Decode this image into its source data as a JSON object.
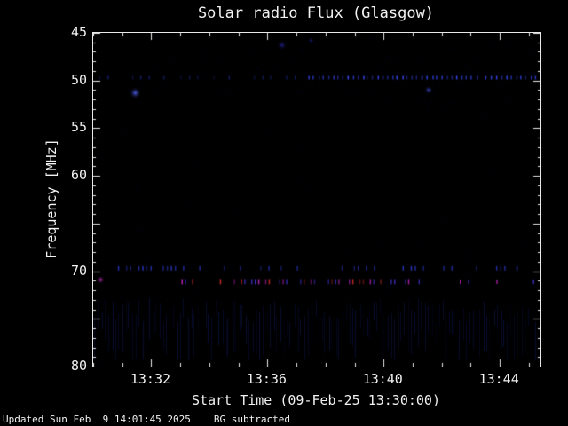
{
  "chart_data": {
    "type": "heatmap",
    "title": "Solar radio Flux (Glasgow)",
    "xlabel": "Start Time (09-Feb-25 13:30:00)",
    "ylabel": "Frequency [MHz]",
    "x_max_minutes": 15.4,
    "y_range": [
      45,
      80
    ],
    "x_ticks": [
      {
        "label": "13:32",
        "minutes": 2
      },
      {
        "label": "13:36",
        "minutes": 6
      },
      {
        "label": "13:40",
        "minutes": 10
      },
      {
        "label": "13:44",
        "minutes": 14
      }
    ],
    "y_ticks": [
      {
        "label": "45",
        "freq": 45
      },
      {
        "label": "50",
        "freq": 50
      },
      {
        "label": "55",
        "freq": 55
      },
      {
        "label": "60",
        "freq": 60
      },
      {
        "label": "70",
        "freq": 70
      },
      {
        "label": "80",
        "freq": 80
      }
    ],
    "background": "#000000",
    "frame_color": "#e8e8e8",
    "features": [
      {
        "kind": "speckle",
        "count": 3000,
        "color": "#1b1b8c",
        "alpha": 0.22
      },
      {
        "kind": "speckle",
        "count": 900,
        "fmin": 45,
        "fmax": 53,
        "color": "#2222aa",
        "alpha": 0.18
      },
      {
        "kind": "vstripes",
        "fmin": 72.8,
        "fmax": 79.3,
        "count": 130,
        "color": "#2230b0",
        "alpha": 0.3
      },
      {
        "kind": "dotrow",
        "freq": 49.7,
        "t0": 0.2,
        "t1": 7.4,
        "step": 0.28,
        "prob": 0.5,
        "color": "#3040e0",
        "alpha": 0.5,
        "size": 2
      },
      {
        "kind": "dotrow",
        "freq": 49.7,
        "t0": 7.4,
        "t1": 15.3,
        "step": 0.17,
        "prob": 0.97,
        "color": "#3b4bff",
        "alpha": 0.95,
        "size": 2
      },
      {
        "kind": "blob",
        "freq": 51.3,
        "t": 1.45,
        "w": 7,
        "h": 5,
        "color": "#5566ff",
        "alpha": 0.9
      },
      {
        "kind": "blob",
        "freq": 51.0,
        "t": 11.55,
        "w": 5,
        "h": 4,
        "color": "#4455ee",
        "alpha": 0.8
      },
      {
        "kind": "blob",
        "freq": 46.3,
        "t": 6.5,
        "w": 6,
        "h": 6,
        "color": "#2a2ab0",
        "alpha": 0.7
      },
      {
        "kind": "blob",
        "freq": 45.8,
        "t": 7.5,
        "w": 4,
        "h": 3,
        "color": "#2a2ab0",
        "alpha": 0.6
      },
      {
        "kind": "tickrow",
        "freq": 69.7,
        "t0": 0.15,
        "t1": 15.3,
        "step": 0.14,
        "prob": 0.3,
        "colors": [
          "#3848ff"
        ],
        "alpha": 0.7,
        "len": 5
      },
      {
        "kind": "tickrow",
        "freq": 71.1,
        "t0": 2.8,
        "t1": 11.3,
        "step": 0.12,
        "prob": 0.45,
        "colors": [
          "#d028d0",
          "#e03030",
          "#5040ff"
        ],
        "alpha": 0.85,
        "len": 6
      },
      {
        "kind": "tickrow",
        "freq": 71.1,
        "t0": 11.5,
        "t1": 15.3,
        "step": 0.14,
        "prob": 0.12,
        "colors": [
          "#d028d0",
          "#5040ff"
        ],
        "alpha": 0.8,
        "len": 5
      },
      {
        "kind": "blob",
        "freq": 70.9,
        "t": 0.25,
        "w": 5,
        "h": 4,
        "color": "#cc33cc",
        "alpha": 0.9
      }
    ]
  },
  "footer": {
    "updated": "Updated Sun Feb  9 14:01:45 2025",
    "bg": "BG subtracted"
  }
}
